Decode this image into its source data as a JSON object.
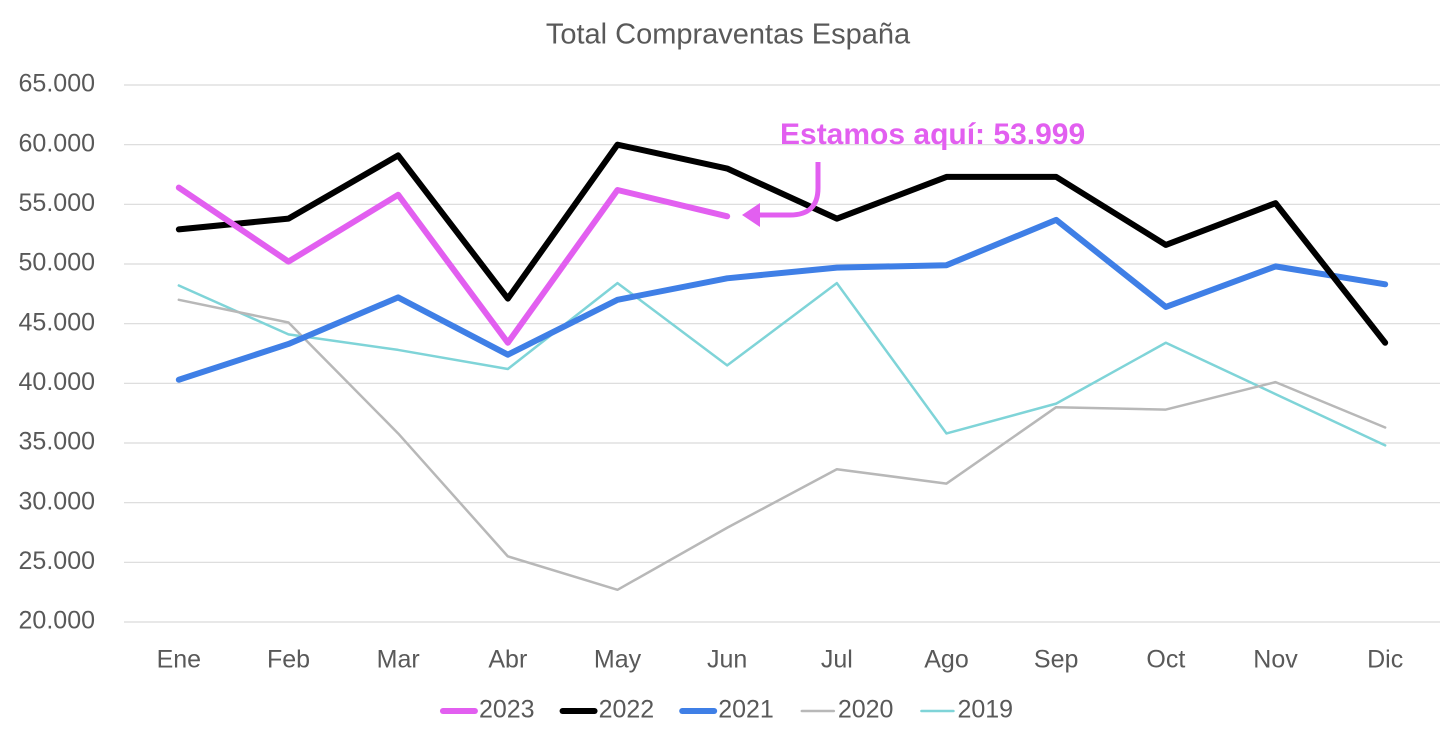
{
  "chart_data": {
    "type": "line",
    "title": "Total Compraventas España",
    "annotation": "Estamos aquí: 53.999",
    "categories": [
      "Ene",
      "Feb",
      "Mar",
      "Abr",
      "May",
      "Jun",
      "Jul",
      "Ago",
      "Sep",
      "Oct",
      "Nov",
      "Dic"
    ],
    "series": [
      {
        "name": "2023",
        "color": "#e25ff0",
        "line_width": 6,
        "values": [
          56400,
          50200,
          55800,
          43400,
          56200,
          53999,
          null,
          null,
          null,
          null,
          null,
          null
        ]
      },
      {
        "name": "2022",
        "color": "#000000",
        "line_width": 6,
        "values": [
          52900,
          53800,
          59100,
          47100,
          60000,
          58000,
          53800,
          57300,
          57300,
          51600,
          55100,
          43400
        ]
      },
      {
        "name": "2021",
        "color": "#3f7fe6",
        "line_width": 6,
        "values": [
          40300,
          43300,
          47200,
          42400,
          47000,
          48800,
          49700,
          49900,
          53700,
          46400,
          49800,
          48300
        ]
      },
      {
        "name": "2020",
        "color": "#b8b8b8",
        "line_width": 2.5,
        "values": [
          47000,
          45100,
          35800,
          25500,
          22700,
          27900,
          32800,
          31600,
          38000,
          37800,
          40100,
          36300
        ]
      },
      {
        "name": "2019",
        "color": "#7fd4d8",
        "line_width": 2.5,
        "values": [
          48200,
          44100,
          42800,
          41200,
          48400,
          41500,
          48400,
          35800,
          38300,
          43400,
          39100,
          34800
        ]
      }
    ],
    "ylim": [
      20000,
      65000
    ],
    "yticks": [
      {
        "value": 20000,
        "label": "20.000"
      },
      {
        "value": 25000,
        "label": "25.000"
      },
      {
        "value": 30000,
        "label": "30.000"
      },
      {
        "value": 35000,
        "label": "35.000"
      },
      {
        "value": 40000,
        "label": "40.000"
      },
      {
        "value": 45000,
        "label": "45.000"
      },
      {
        "value": 50000,
        "label": "50.000"
      },
      {
        "value": 55000,
        "label": "55.000"
      },
      {
        "value": 60000,
        "label": "60.000"
      },
      {
        "value": 65000,
        "label": "65.000"
      }
    ],
    "grid": true,
    "legend": "bottom"
  }
}
